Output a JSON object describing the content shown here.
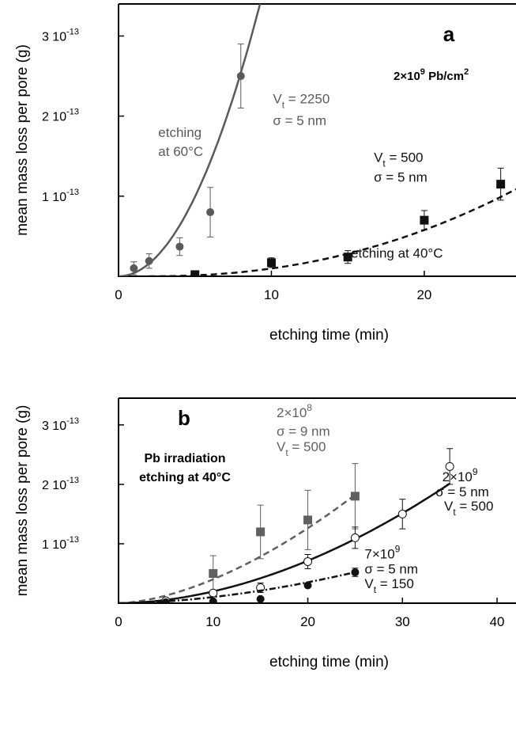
{
  "chart_data": [
    {
      "panel_label": "a",
      "type": "scatter",
      "annotation": "2×10⁹ Pb/cm²",
      "xlabel": "etching time (min)",
      "ylabel": "mean mass loss per pore (g)",
      "xticks": [
        "0",
        "10",
        "20"
      ],
      "yticks": [
        "1 10",
        "2 10",
        "3 10"
      ],
      "ytick_exponent": "-13",
      "xlim": [
        0,
        26
      ],
      "ylim": [
        0,
        3.4e-13
      ],
      "series": [
        {
          "color": "#5a5a5a",
          "marker": "circle-filled",
          "points": [
            {
              "x": 1,
              "y": 1e-14,
              "err": 8e-15
            },
            {
              "x": 2,
              "y": 1.9e-14,
              "err": 9e-15
            },
            {
              "x": 4,
              "y": 3.7e-14,
              "err": 1.1e-14
            },
            {
              "x": 6,
              "y": 8e-14,
              "err": 3.1e-14
            },
            {
              "x": 8,
              "y": 2.5e-13,
              "err": 4e-14
            }
          ],
          "fit": {
            "style": "solid",
            "coef": 3.97e-15,
            "exp": 2
          },
          "labels": [
            {
              "text": "etching",
              "x": 2.6,
              "y": 1.74e-13
            },
            {
              "text": "at 60°C",
              "x": 2.6,
              "y": 1.5e-13
            },
            {
              "text": "V",
              "sub": "t",
              "rest": " = 2250",
              "x": 10.1,
              "y": 2.16e-13
            },
            {
              "text": "σ = 5 nm",
              "x": 10.1,
              "y": 1.89e-13
            }
          ]
        },
        {
          "color": "#111111",
          "marker": "square-filled",
          "points": [
            {
              "x": 5,
              "y": 2e-15,
              "err": 4e-15
            },
            {
              "x": 10,
              "y": 1.7e-14,
              "err": 6e-15
            },
            {
              "x": 15,
              "y": 2.4e-14,
              "err": 8e-15
            },
            {
              "x": 20,
              "y": 7e-14,
              "err": 1.2e-14
            },
            {
              "x": 25,
              "y": 1.15e-13,
              "err": 2e-14
            }
          ],
          "fit": {
            "style": "dashed",
            "coef": 1e-16,
            "exp": 2.2,
            "x0": 2
          },
          "labels": [
            {
              "text": "V",
              "sub": "t",
              "rest": " = 500",
              "x": 16.7,
              "y": 1.43e-13
            },
            {
              "text": "σ = 5 nm",
              "x": 16.7,
              "y": 1.18e-13
            },
            {
              "text": "etching at 40°C",
              "x": 15.2,
              "y": 2.3e-14
            }
          ]
        }
      ]
    },
    {
      "panel_label": "b",
      "type": "scatter",
      "annotation": [
        "Pb irradiation",
        "etching at 40°C"
      ],
      "xlabel": "etching time (min)",
      "ylabel": "mean mass loss per pore (g)",
      "xticks": [
        "0",
        "10",
        "20",
        "30",
        "40"
      ],
      "yticks": [
        "1 10",
        "2 10",
        "3 10"
      ],
      "ytick_exponent": "-13",
      "xlim": [
        0,
        42
      ],
      "ylim": [
        0,
        3.45e-13
      ],
      "series": [
        {
          "color": "#606060",
          "marker": "square-filled",
          "points": [
            {
              "x": 10,
              "y": 5e-14,
              "err": 3e-14
            },
            {
              "x": 15,
              "y": 1.2e-13,
              "err": 4.5e-14
            },
            {
              "x": 20,
              "y": 1.4e-13,
              "err": 5e-14
            },
            {
              "x": 25,
              "y": 1.8e-13,
              "err": 5.5e-14
            }
          ],
          "fit": {
            "style": "dashed",
            "coef": 9e-16,
            "exp": 1.65,
            "xmax": 25
          },
          "labels": [
            {
              "text": "2×10",
              "sup": "8",
              "x": 16.7,
              "y": 3.13e-13
            },
            {
              "text": "σ = 9 nm",
              "x": 16.7,
              "y": 2.82e-13
            },
            {
              "text": "V",
              "sub": "t",
              "rest": " = 500",
              "x": 16.7,
              "y": 2.56e-13
            }
          ]
        },
        {
          "color": "#111111",
          "marker": "circle-open",
          "points": [
            {
              "x": 5,
              "y": 4e-15,
              "err": 0
            },
            {
              "x": 10,
              "y": 1.7e-14,
              "err": 4e-15
            },
            {
              "x": 15,
              "y": 2.6e-14,
              "err": 8e-15
            },
            {
              "x": 20,
              "y": 7e-14,
              "err": 1.2e-14
            },
            {
              "x": 25,
              "y": 1.1e-13,
              "err": 1.8e-14
            },
            {
              "x": 30,
              "y": 1.5e-13,
              "err": 2.5e-14
            },
            {
              "x": 35,
              "y": 2.3e-13,
              "err": 3e-14
            }
          ],
          "fit": {
            "style": "solid",
            "coef": 2.8e-16,
            "exp": 1.85,
            "xmax": 35
          },
          "labels": [
            {
              "text": "2×10",
              "sup": "9",
              "x": 34.2,
              "y": 2.05e-13
            },
            {
              "text": "σ = 5 nm",
              "x": 33.5,
              "y": 1.8e-13
            },
            {
              "text": "V",
              "sub": "t",
              "rest": " = 500",
              "x": 34.4,
              "y": 1.56e-13
            }
          ]
        },
        {
          "color": "#111111",
          "marker": "circle-filled",
          "points": [
            {
              "x": 5,
              "y": 1.5e-15,
              "err": 0
            },
            {
              "x": 10,
              "y": 3e-15,
              "err": 0
            },
            {
              "x": 15,
              "y": 7e-15,
              "err": 0
            },
            {
              "x": 20,
              "y": 3e-14,
              "err": 3e-15
            },
            {
              "x": 25,
              "y": 5.2e-14,
              "err": 7e-15
            }
          ],
          "fit": {
            "style": "dash-dot",
            "coef": 1.75e-16,
            "exp": 1.77,
            "xmax": 25
          },
          "labels": [
            {
              "text": "7×10",
              "sup": "9",
              "x": 26.0,
              "y": 7.5e-14
            },
            {
              "text": "σ = 5 nm",
              "x": 26.0,
              "y": 5e-14
            },
            {
              "text": "V",
              "sub": "t",
              "rest": " = 150",
              "x": 26.0,
              "y": 2.55e-14
            }
          ]
        }
      ]
    }
  ]
}
